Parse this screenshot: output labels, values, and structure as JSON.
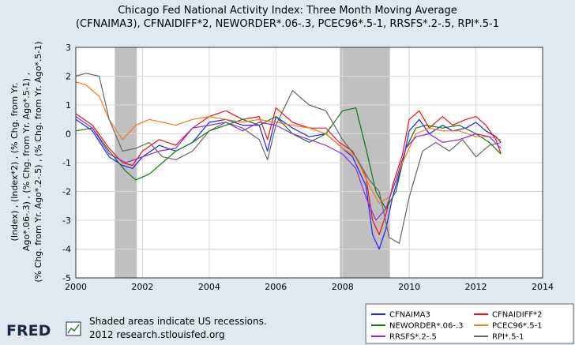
{
  "chart_data": {
    "type": "line",
    "title": "Chicago Fed National Activity Index: Three Month Moving Average",
    "subtitle": "(CFNAIMA3), CFNAIDIFF*2, NEWORDER*.06-.3, PCEC96*.5-1, RRSFS*.2-.5, RPI*.5-1",
    "ylabel_lines": [
      "(Index) , (Index*2) , (% Chg. from Yr.",
      "Ago*.06-.3) , (% Chg. from Yr. Ago*.5-1) ,",
      "(% Chg. from Yr. Ago*.2-.5) , (% Chg. from Yr. Ago*.5-1)"
    ],
    "xlim": [
      2000,
      2014
    ],
    "ylim": [
      -5,
      3
    ],
    "xticks": [
      2000,
      2002,
      2004,
      2006,
      2008,
      2010,
      2012,
      2014
    ],
    "yticks": [
      3,
      2,
      1,
      0,
      -1,
      -2,
      -3,
      -4,
      -5
    ],
    "grid": true,
    "recessions": [
      [
        2001.17,
        2001.83
      ],
      [
        2007.92,
        2009.42
      ]
    ],
    "legend_position": "bottom-right",
    "series": [
      {
        "name": "CFNAIMA3",
        "color": "#2222ee",
        "x": [
          2000.0,
          2000.5,
          2001.0,
          2001.4,
          2001.7,
          2002.0,
          2002.5,
          2003.0,
          2003.5,
          2004.0,
          2004.5,
          2005.0,
          2005.5,
          2005.75,
          2006.0,
          2006.5,
          2007.0,
          2007.5,
          2007.9,
          2008.3,
          2008.7,
          2008.9,
          2009.1,
          2009.3,
          2009.5,
          2009.8,
          2010.0,
          2010.3,
          2010.6,
          2011.0,
          2011.3,
          2011.7,
          2012.0,
          2012.3,
          2012.6,
          2012.75
        ],
        "y": [
          0.5,
          0.1,
          -0.8,
          -1.1,
          -1.2,
          -0.8,
          -0.4,
          -0.6,
          -0.3,
          0.4,
          0.5,
          0.3,
          0.3,
          -0.6,
          0.6,
          0.2,
          -0.1,
          0.0,
          -0.4,
          -0.8,
          -1.8,
          -3.5,
          -4.0,
          -3.3,
          -2.2,
          -1.0,
          0.1,
          0.5,
          0.0,
          0.3,
          0.1,
          0.2,
          0.4,
          0.1,
          -0.1,
          -0.3
        ]
      },
      {
        "name": "CFNAIDIFF*2",
        "color": "#ee1111",
        "x": [
          2000.0,
          2000.5,
          2001.0,
          2001.4,
          2001.7,
          2002.0,
          2002.5,
          2003.0,
          2003.5,
          2004.0,
          2004.5,
          2005.0,
          2005.5,
          2005.75,
          2006.0,
          2006.5,
          2007.0,
          2007.5,
          2007.9,
          2008.3,
          2008.7,
          2008.9,
          2009.1,
          2009.3,
          2009.5,
          2009.8,
          2010.0,
          2010.3,
          2010.6,
          2011.0,
          2011.3,
          2011.7,
          2012.0,
          2012.3,
          2012.6,
          2012.75
        ],
        "y": [
          0.7,
          0.3,
          -0.5,
          -1.0,
          -1.1,
          -0.6,
          -0.2,
          -0.4,
          0.2,
          0.6,
          0.8,
          0.5,
          0.6,
          -0.2,
          0.9,
          0.4,
          0.2,
          0.2,
          -0.3,
          -0.6,
          -1.5,
          -3.0,
          -3.5,
          -2.8,
          -1.8,
          -0.7,
          0.5,
          0.8,
          0.2,
          0.6,
          0.3,
          0.5,
          0.6,
          0.3,
          -0.2,
          -0.7
        ]
      },
      {
        "name": "NEWORDER*.06-.3",
        "color": "#117711",
        "x": [
          2000.0,
          2000.5,
          2001.0,
          2001.5,
          2001.8,
          2002.2,
          2002.6,
          2003.0,
          2003.5,
          2004.0,
          2004.5,
          2005.0,
          2005.5,
          2006.0,
          2006.5,
          2007.0,
          2007.5,
          2008.0,
          2008.4,
          2008.7,
          2009.0,
          2009.3,
          2009.6,
          2009.9,
          2010.2,
          2010.5,
          2011.0,
          2011.5,
          2012.0,
          2012.4,
          2012.75
        ],
        "y": [
          0.1,
          0.2,
          -0.6,
          -1.3,
          -1.6,
          -1.4,
          -1.0,
          -0.6,
          -0.3,
          0.1,
          0.3,
          0.5,
          0.3,
          0.6,
          0.0,
          -0.3,
          0.0,
          0.8,
          0.9,
          -0.5,
          -2.0,
          -2.6,
          -2.0,
          -0.5,
          0.2,
          0.3,
          0.2,
          0.3,
          0.0,
          -0.3,
          -0.7
        ]
      },
      {
        "name": "PCEC96*.5-1",
        "color": "#ff7711",
        "x": [
          2000.0,
          2000.3,
          2000.7,
          2001.0,
          2001.4,
          2001.8,
          2002.2,
          2002.6,
          2003.0,
          2003.5,
          2004.0,
          2004.5,
          2005.0,
          2005.5,
          2006.0,
          2006.5,
          2007.0,
          2007.5,
          2008.0,
          2008.4,
          2008.8,
          2009.1,
          2009.4,
          2009.8,
          2010.2,
          2010.6,
          2011.0,
          2011.5,
          2012.0,
          2012.4,
          2012.75
        ],
        "y": [
          1.8,
          1.7,
          1.3,
          0.5,
          -0.2,
          0.3,
          0.5,
          0.4,
          0.3,
          0.5,
          0.6,
          0.5,
          0.4,
          0.5,
          0.4,
          0.3,
          0.2,
          0.0,
          -0.5,
          -0.8,
          -1.8,
          -2.4,
          -2.2,
          -1.0,
          0.0,
          0.2,
          0.1,
          0.1,
          -0.1,
          -0.1,
          -0.2
        ]
      },
      {
        "name": "RRSFS*.2-.5",
        "color": "#8a2be2",
        "x": [
          2000.0,
          2000.5,
          2001.0,
          2001.5,
          2002.0,
          2002.5,
          2003.0,
          2003.5,
          2004.0,
          2004.5,
          2005.0,
          2005.5,
          2006.0,
          2006.5,
          2007.0,
          2007.5,
          2008.0,
          2008.4,
          2008.7,
          2009.0,
          2009.3,
          2009.6,
          2009.9,
          2010.2,
          2010.6,
          2011.0,
          2011.5,
          2012.0,
          2012.4,
          2012.75
        ],
        "y": [
          0.6,
          0.2,
          -0.7,
          -1.0,
          -0.8,
          -0.6,
          -0.5,
          0.2,
          0.3,
          0.4,
          0.1,
          0.4,
          0.3,
          0.0,
          -0.2,
          -0.4,
          -0.7,
          -1.2,
          -2.2,
          -3.0,
          -2.6,
          -1.6,
          -0.5,
          -0.1,
          0.0,
          -0.3,
          -0.2,
          0.0,
          -0.1,
          -0.5
        ]
      },
      {
        "name": "RPI*.5-1",
        "color": "#666666",
        "x": [
          2000.0,
          2000.3,
          2000.7,
          2001.0,
          2001.4,
          2001.8,
          2002.2,
          2002.6,
          2003.0,
          2003.5,
          2004.0,
          2004.5,
          2005.0,
          2005.5,
          2005.75,
          2006.0,
          2006.5,
          2007.0,
          2007.5,
          2008.0,
          2008.4,
          2008.8,
          2009.1,
          2009.4,
          2009.7,
          2010.0,
          2010.4,
          2010.8,
          2011.2,
          2011.6,
          2012.0,
          2012.4,
          2012.75
        ],
        "y": [
          2.0,
          2.1,
          2.0,
          0.5,
          -0.6,
          -0.5,
          -0.3,
          -0.8,
          -0.9,
          -0.6,
          0.1,
          0.4,
          0.2,
          -0.2,
          -0.9,
          0.3,
          1.5,
          1.0,
          0.8,
          -0.2,
          -0.8,
          -1.6,
          -2.0,
          -3.6,
          -3.8,
          -2.2,
          -0.6,
          -0.3,
          -0.6,
          -0.2,
          -0.8,
          -0.4,
          -0.3
        ]
      }
    ]
  },
  "footer": {
    "logo_text": "FRED",
    "note_line1": "Shaded areas indicate US recessions.",
    "note_line2": "2012 research.stlouisfed.org"
  },
  "colors": {
    "background": "#e1e9f0",
    "plot_background": "#ffffff",
    "recession": "#c0c0c0",
    "grid": "#d8d8d8"
  }
}
